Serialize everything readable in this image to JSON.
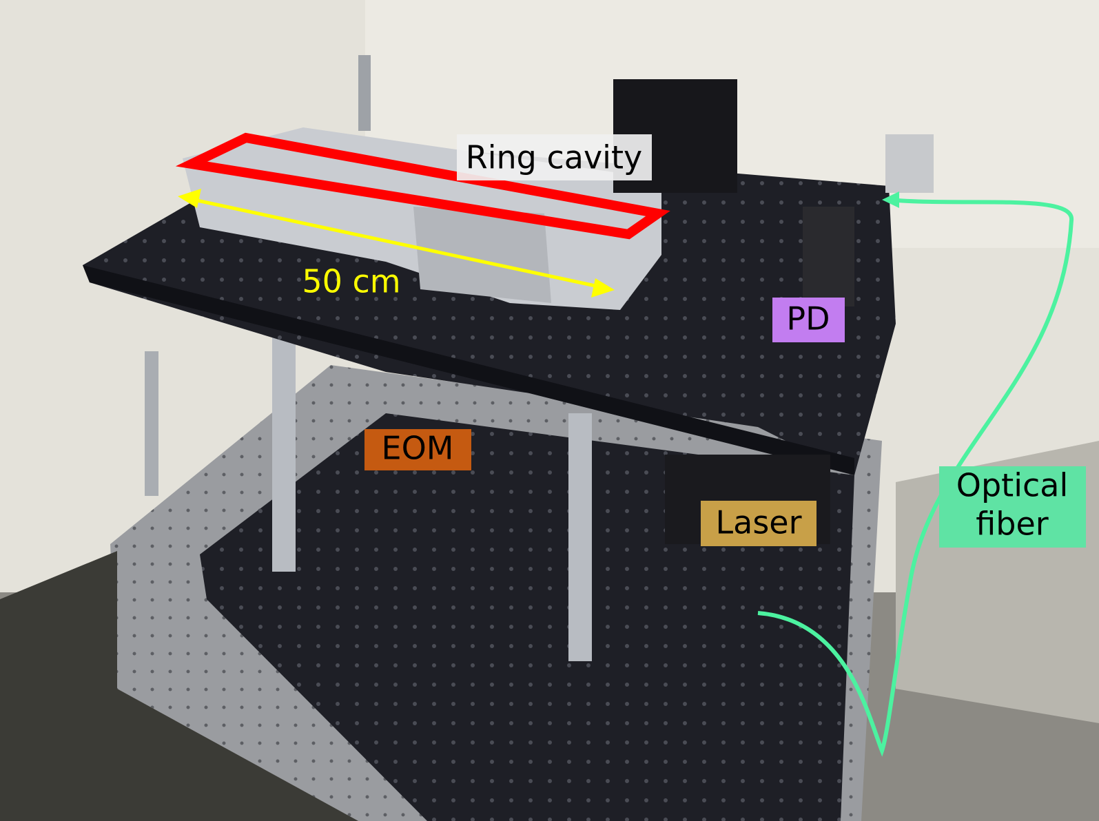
{
  "labels": {
    "ring_cavity": "Ring cavity",
    "length": "50 cm",
    "pd": "PD",
    "eom": "EOM",
    "laser": "Laser",
    "optical_fiber": [
      "Optical",
      "fiber"
    ]
  }
}
